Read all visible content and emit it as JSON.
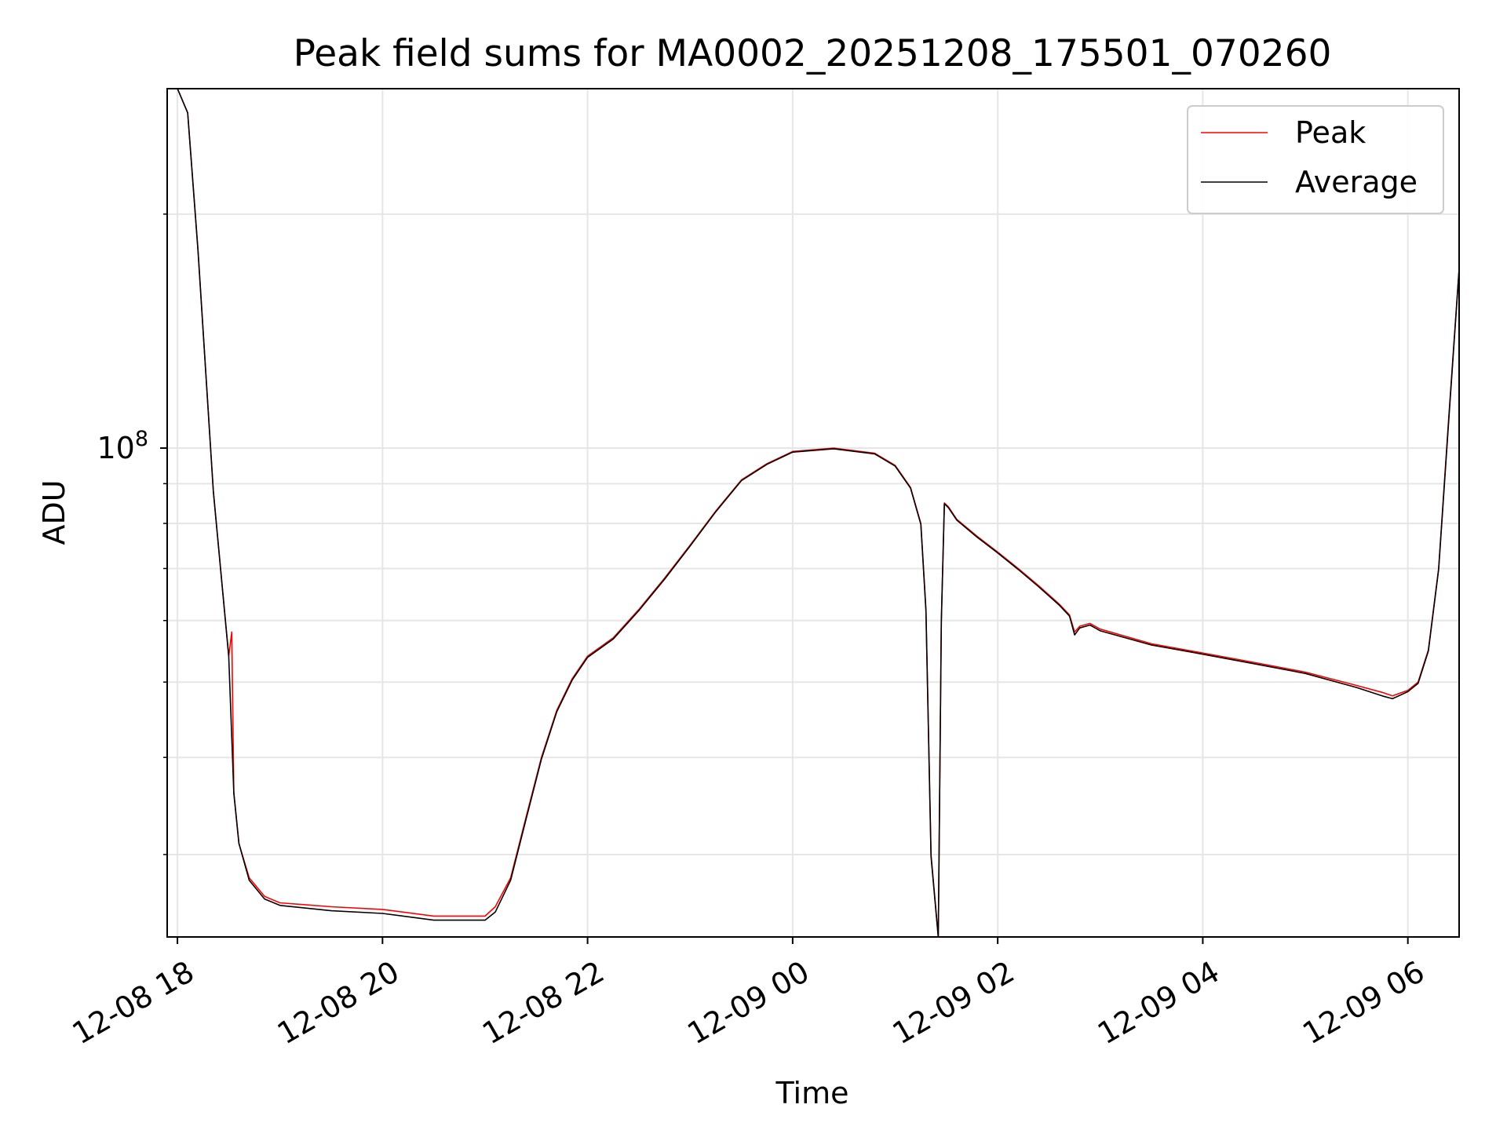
{
  "chart_data": {
    "type": "line",
    "title": "Peak field sums for MA0002_20251208_175501_070260",
    "xlabel": "Time",
    "ylabel": "ADU",
    "yscale": "log",
    "xlim_hours": [
      -0.1,
      12.5
    ],
    "ylim": [
      23500000,
      290000000
    ],
    "grid": true,
    "legend_position": "upper right",
    "x_ticks": [
      {
        "hours": 0,
        "label": "12-08 18"
      },
      {
        "hours": 2,
        "label": "12-08 20"
      },
      {
        "hours": 4,
        "label": "12-08 22"
      },
      {
        "hours": 6,
        "label": "12-09 00"
      },
      {
        "hours": 8,
        "label": "12-09 02"
      },
      {
        "hours": 10,
        "label": "12-09 04"
      },
      {
        "hours": 12,
        "label": "12-09 06"
      }
    ],
    "y_major_ticks": [
      {
        "value": 100000000,
        "base": "10",
        "exponent": "8"
      }
    ],
    "y_minor_ticks": [
      30000000,
      40000000,
      50000000,
      60000000,
      70000000,
      80000000,
      90000000,
      200000000
    ],
    "x_unit": "hours after 12-08 18:00",
    "series": [
      {
        "name": "Peak",
        "color": "#ff0000",
        "x": [
          0.0,
          0.1,
          0.2,
          0.35,
          0.5,
          0.53,
          0.55,
          0.6,
          0.7,
          0.85,
          1.0,
          1.5,
          2.0,
          2.5,
          3.0,
          3.1,
          3.25,
          3.4,
          3.55,
          3.7,
          3.85,
          4.0,
          4.25,
          4.5,
          4.75,
          5.0,
          5.25,
          5.5,
          5.75,
          6.0,
          6.4,
          6.8,
          7.0,
          7.15,
          7.25,
          7.3,
          7.35,
          7.42,
          7.45,
          7.48,
          7.52,
          7.6,
          7.8,
          8.0,
          8.2,
          8.4,
          8.6,
          8.7,
          8.75,
          8.8,
          8.9,
          9.0,
          9.5,
          10.0,
          10.5,
          11.0,
          11.5,
          11.75,
          11.85,
          12.0,
          12.1,
          12.2,
          12.3,
          12.4,
          12.5
        ],
        "y": [
          290000000,
          270000000,
          180000000,
          88000000,
          54000000,
          58000000,
          36000000,
          31000000,
          28000000,
          26500000,
          26000000,
          25700000,
          25500000,
          25000000,
          25000000,
          25700000,
          28000000,
          33500000,
          40000000,
          46000000,
          50500000,
          54000000,
          57000000,
          62000000,
          68000000,
          75000000,
          83000000,
          91000000,
          95500000,
          99000000,
          100000000,
          98500000,
          95000000,
          89000000,
          80000000,
          62000000,
          30000000,
          23500000,
          60000000,
          85000000,
          84000000,
          81000000,
          77000000,
          73500000,
          70000000,
          66500000,
          63000000,
          61000000,
          58000000,
          59000000,
          59500000,
          58500000,
          56000000,
          54500000,
          53000000,
          51500000,
          49500000,
          48500000,
          48000000,
          48800000,
          50000000,
          55000000,
          70000000,
          110000000,
          170000000
        ]
      },
      {
        "name": "Average",
        "color": "#000000",
        "x": [
          0.0,
          0.1,
          0.2,
          0.35,
          0.5,
          0.55,
          0.6,
          0.7,
          0.85,
          1.0,
          1.5,
          2.0,
          2.5,
          3.0,
          3.1,
          3.25,
          3.4,
          3.55,
          3.7,
          3.85,
          4.0,
          4.25,
          4.5,
          4.75,
          5.0,
          5.25,
          5.5,
          5.75,
          6.0,
          6.4,
          6.8,
          7.0,
          7.15,
          7.25,
          7.3,
          7.35,
          7.42,
          7.45,
          7.48,
          7.52,
          7.6,
          7.8,
          8.0,
          8.2,
          8.4,
          8.6,
          8.7,
          8.75,
          8.8,
          8.9,
          9.0,
          9.5,
          10.0,
          10.5,
          11.0,
          11.5,
          11.75,
          11.85,
          12.0,
          12.1,
          12.2,
          12.3,
          12.4,
          12.5
        ],
        "y": [
          290000000,
          270000000,
          180000000,
          88000000,
          54000000,
          36000000,
          31000000,
          27800000,
          26300000,
          25800000,
          25400000,
          25200000,
          24700000,
          24700000,
          25300000,
          27800000,
          33300000,
          39800000,
          45800000,
          50300000,
          53800000,
          56800000,
          61800000,
          67800000,
          74800000,
          82800000,
          90800000,
          95300000,
          98800000,
          99800000,
          98300000,
          94800000,
          88800000,
          79800000,
          61800000,
          29800000,
          23500000,
          59800000,
          84800000,
          83800000,
          80800000,
          76800000,
          73300000,
          69800000,
          66300000,
          62800000,
          60800000,
          57500000,
          58700000,
          59200000,
          58200000,
          55800000,
          54300000,
          52800000,
          51300000,
          49200000,
          48000000,
          47600000,
          48600000,
          49800000,
          54800000,
          69800000,
          109000000,
          170000000
        ]
      }
    ]
  }
}
